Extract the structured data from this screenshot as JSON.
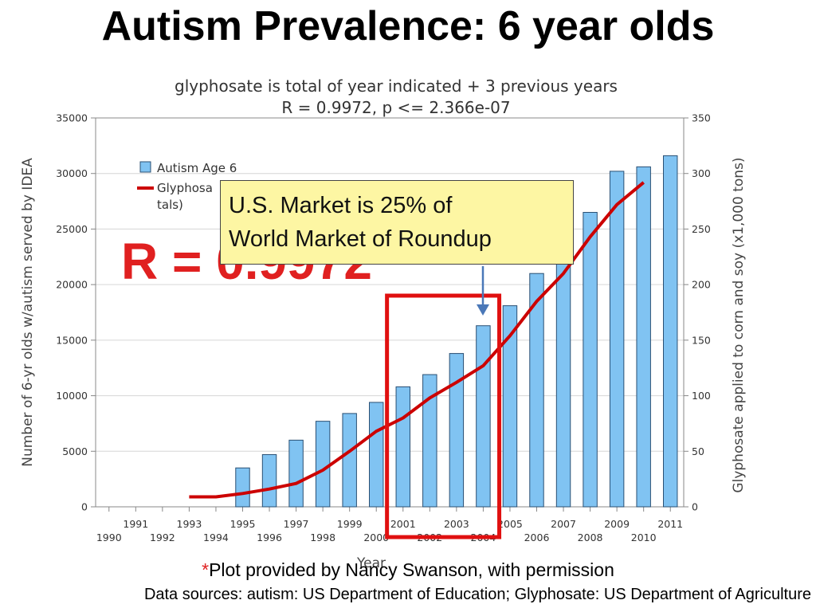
{
  "slide": {
    "title": "Autism Prevalence: 6 year olds",
    "callout": [
      "U.S. Market is 25% of",
      "World Market of Roundup"
    ],
    "r_overlay": "R = 0.9972",
    "footnote_star": "*",
    "footnote": "Plot provided by Nancy Swanson, with permission",
    "sources": "Data sources: autism: US Department of Education; Glyphosate: US Department of Agriculture"
  },
  "chart_data": {
    "type": "bar",
    "subtitle": [
      "glyphosate is total of year indicated + 3 previous years",
      "R = 0.9972, p <= 2.366e-07"
    ],
    "xlabel": "Year",
    "ylabel": "Number of 6-yr olds w/autism served by IDEA",
    "y2label": "Glyphosate applied to corn and soy (x1,000 tons)",
    "years": [
      1990,
      1991,
      1992,
      1993,
      1994,
      1995,
      1996,
      1997,
      1998,
      1999,
      2000,
      2001,
      2002,
      2003,
      2004,
      2005,
      2006,
      2007,
      2008,
      2009,
      2010,
      2011
    ],
    "ylim": [
      0,
      35000
    ],
    "y2lim": [
      0,
      350
    ],
    "yticks": [
      0,
      5000,
      10000,
      15000,
      20000,
      25000,
      30000,
      35000
    ],
    "y2ticks": [
      0,
      50,
      100,
      150,
      200,
      250,
      300,
      350
    ],
    "grid": true,
    "legend_position": "top-left",
    "series": [
      {
        "name": "Autism Age 6",
        "kind": "bar",
        "color": "#80c3f2",
        "x": [
          1995,
          1996,
          1997,
          1998,
          1999,
          2000,
          2001,
          2002,
          2003,
          2004,
          2005,
          2006,
          2007,
          2008,
          2009,
          2010,
          2011
        ],
        "values": [
          3500,
          4700,
          6000,
          7700,
          8400,
          9400,
          10800,
          11900,
          13800,
          16300,
          18100,
          21000,
          22500,
          26500,
          30200,
          30600,
          31600
        ]
      },
      {
        "name": "Glyphosa tals)",
        "kind": "line",
        "axis": "right",
        "color": "#cc0000",
        "x": [
          1993,
          1994,
          1995,
          1996,
          1997,
          1998,
          1999,
          2000,
          2001,
          2002,
          2003,
          2004,
          2005,
          2006,
          2007,
          2008,
          2009,
          2010
        ],
        "values": [
          9,
          9,
          12,
          16,
          21,
          33,
          50,
          68,
          80,
          98,
          112,
          127,
          154,
          185,
          210,
          243,
          272,
          292
        ]
      }
    ],
    "highlight_range": [
      2001,
      2004
    ],
    "arrow_target_year": 2004
  }
}
